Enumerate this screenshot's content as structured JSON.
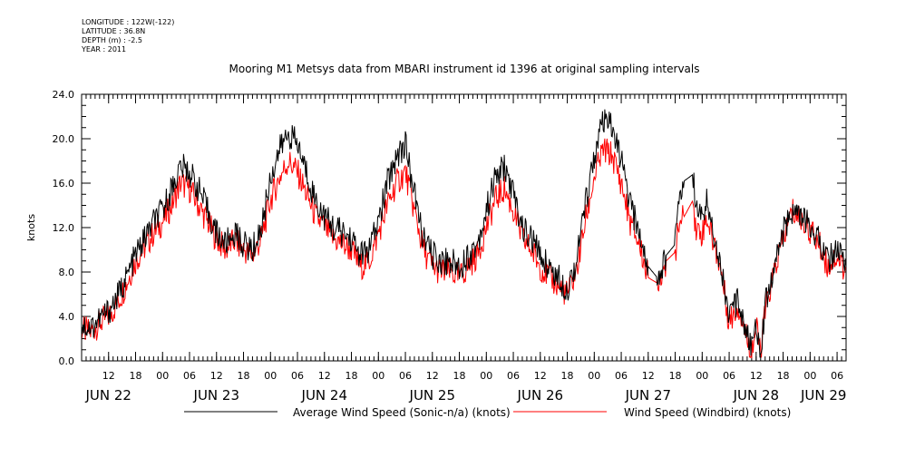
{
  "meta": {
    "longitude": "LONGITUDE : 122W(-122)",
    "latitude": "LATITUDE : 36.8N",
    "depth": "DEPTH (m) : -2.5",
    "year": "YEAR : 2011"
  },
  "chart_data": {
    "type": "line",
    "title": "Mooring M1 Metsys data from MBARI instrument id 1396 at original sampling intervals",
    "ylabel": "knots",
    "xlabel": "",
    "ylim": [
      0,
      24
    ],
    "yticks": [
      "0.0",
      "4.0",
      "8.0",
      "12.0",
      "16.0",
      "20.0",
      "24.0"
    ],
    "x_unit": "hours since JUN 22 00",
    "xlim": [
      6,
      176
    ],
    "hour_ticks": [
      {
        "h": 12,
        "label": "12"
      },
      {
        "h": 18,
        "label": "18"
      },
      {
        "h": 24,
        "label": "00"
      },
      {
        "h": 30,
        "label": "06"
      },
      {
        "h": 36,
        "label": "12"
      },
      {
        "h": 42,
        "label": "18"
      },
      {
        "h": 48,
        "label": "00"
      },
      {
        "h": 54,
        "label": "06"
      },
      {
        "h": 60,
        "label": "12"
      },
      {
        "h": 66,
        "label": "18"
      },
      {
        "h": 72,
        "label": "00"
      },
      {
        "h": 78,
        "label": "06"
      },
      {
        "h": 84,
        "label": "12"
      },
      {
        "h": 90,
        "label": "18"
      },
      {
        "h": 96,
        "label": "00"
      },
      {
        "h": 102,
        "label": "06"
      },
      {
        "h": 108,
        "label": "12"
      },
      {
        "h": 114,
        "label": "18"
      },
      {
        "h": 120,
        "label": "00"
      },
      {
        "h": 126,
        "label": "06"
      },
      {
        "h": 132,
        "label": "12"
      },
      {
        "h": 138,
        "label": "18"
      },
      {
        "h": 144,
        "label": "00"
      },
      {
        "h": 150,
        "label": "06"
      },
      {
        "h": 156,
        "label": "12"
      },
      {
        "h": 162,
        "label": "18"
      },
      {
        "h": 168,
        "label": "00"
      },
      {
        "h": 174,
        "label": "06"
      }
    ],
    "day_labels": [
      {
        "h": 12,
        "label": "JUN 22"
      },
      {
        "h": 36,
        "label": "JUN 23"
      },
      {
        "h": 60,
        "label": "JUN 24"
      },
      {
        "h": 84,
        "label": "JUN 25"
      },
      {
        "h": 108,
        "label": "JUN 26"
      },
      {
        "h": 132,
        "label": "JUN 27"
      },
      {
        "h": 156,
        "label": "JUN 28"
      },
      {
        "h": 171,
        "label": "JUN 29"
      }
    ],
    "series": [
      {
        "name": "Average Wind Speed (Sonic-n/a) (knots)",
        "color": "#000000",
        "points": [
          [
            6,
            3.2
          ],
          [
            8,
            3.0
          ],
          [
            10,
            3.8
          ],
          [
            12,
            4.5
          ],
          [
            14,
            5.8
          ],
          [
            16,
            7.5
          ],
          [
            18,
            9.5
          ],
          [
            20,
            11
          ],
          [
            22,
            12.5
          ],
          [
            24,
            13.5
          ],
          [
            26,
            15.5
          ],
          [
            28,
            17.5
          ],
          [
            30,
            17.0
          ],
          [
            32,
            15.5
          ],
          [
            34,
            13.5
          ],
          [
            36,
            11.5
          ],
          [
            38,
            10.5
          ],
          [
            40,
            11.5
          ],
          [
            42,
            10.5
          ],
          [
            44,
            10.0
          ],
          [
            46,
            12.0
          ],
          [
            48,
            16.5
          ],
          [
            50,
            19.0
          ],
          [
            52,
            20.5
          ],
          [
            54,
            19.5
          ],
          [
            56,
            17.0
          ],
          [
            58,
            14.5
          ],
          [
            60,
            13.0
          ],
          [
            62,
            12.0
          ],
          [
            64,
            11.5
          ],
          [
            66,
            11.0
          ],
          [
            68,
            9.5
          ],
          [
            70,
            10.0
          ],
          [
            72,
            12.5
          ],
          [
            74,
            16.0
          ],
          [
            76,
            18.5
          ],
          [
            78,
            19.5
          ],
          [
            80,
            15.0
          ],
          [
            82,
            11.0
          ],
          [
            84,
            9.5
          ],
          [
            86,
            9.0
          ],
          [
            88,
            9.0
          ],
          [
            90,
            8.5
          ],
          [
            92,
            9.5
          ],
          [
            94,
            10.5
          ],
          [
            96,
            13.5
          ],
          [
            98,
            16.5
          ],
          [
            100,
            17.5
          ],
          [
            102,
            15.0
          ],
          [
            104,
            12.0
          ],
          [
            106,
            11.0
          ],
          [
            108,
            9.5
          ],
          [
            110,
            8.5
          ],
          [
            112,
            7.5
          ],
          [
            114,
            6.5
          ],
          [
            116,
            9.0
          ],
          [
            118,
            14.0
          ],
          [
            120,
            18.5
          ],
          [
            122,
            21.5
          ],
          [
            124,
            21.0
          ],
          [
            126,
            18.0
          ],
          [
            128,
            14.0
          ],
          [
            130,
            11.5
          ],
          [
            132,
            8.5
          ],
          [
            134,
            7.5
          ],
          [
            136,
            9.5
          ],
          [
            138,
            10.5
          ],
          [
            139,
            15.5
          ],
          [
            140,
            16.2
          ],
          [
            142,
            16.8
          ],
          [
            142.5,
            13.5
          ],
          [
            144,
            13.0
          ],
          [
            145,
            14.5
          ],
          [
            146,
            12.5
          ],
          [
            148,
            9.0
          ],
          [
            150,
            4.0
          ],
          [
            152,
            5.5
          ],
          [
            154,
            2.5
          ],
          [
            155,
            1.0
          ],
          [
            156,
            3.5
          ],
          [
            157,
            1.0
          ],
          [
            158,
            5.0
          ],
          [
            160,
            8.5
          ],
          [
            162,
            11.5
          ],
          [
            164,
            13.5
          ],
          [
            166,
            13.0
          ],
          [
            168,
            12.0
          ],
          [
            170,
            11.0
          ],
          [
            172,
            9.0
          ],
          [
            174,
            10.0
          ],
          [
            176,
            8.5
          ]
        ]
      },
      {
        "name": "Wind Speed (Windbird) (knots)",
        "color": "#ff0000",
        "points": [
          [
            6,
            2.8
          ],
          [
            8,
            2.6
          ],
          [
            10,
            3.4
          ],
          [
            12,
            4.0
          ],
          [
            14,
            5.2
          ],
          [
            16,
            7.0
          ],
          [
            18,
            9.0
          ],
          [
            20,
            10.2
          ],
          [
            22,
            11.5
          ],
          [
            24,
            12.5
          ],
          [
            26,
            14.0
          ],
          [
            28,
            16.0
          ],
          [
            30,
            15.5
          ],
          [
            32,
            14.0
          ],
          [
            34,
            12.5
          ],
          [
            36,
            11.0
          ],
          [
            38,
            10.0
          ],
          [
            40,
            10.8
          ],
          [
            42,
            10.0
          ],
          [
            44,
            9.5
          ],
          [
            46,
            11.0
          ],
          [
            48,
            14.5
          ],
          [
            50,
            16.5
          ],
          [
            52,
            18.0
          ],
          [
            54,
            17.0
          ],
          [
            56,
            15.0
          ],
          [
            58,
            13.0
          ],
          [
            60,
            12.0
          ],
          [
            62,
            11.0
          ],
          [
            64,
            10.5
          ],
          [
            66,
            10.0
          ],
          [
            68,
            8.5
          ],
          [
            70,
            9.0
          ],
          [
            72,
            11.5
          ],
          [
            74,
            14.0
          ],
          [
            76,
            16.0
          ],
          [
            78,
            17.0
          ],
          [
            80,
            13.5
          ],
          [
            82,
            10.0
          ],
          [
            84,
            8.5
          ],
          [
            86,
            8.0
          ],
          [
            88,
            8.0
          ],
          [
            90,
            7.5
          ],
          [
            92,
            8.5
          ],
          [
            94,
            9.5
          ],
          [
            96,
            12.0
          ],
          [
            98,
            14.5
          ],
          [
            100,
            15.5
          ],
          [
            102,
            13.5
          ],
          [
            104,
            11.0
          ],
          [
            106,
            10.0
          ],
          [
            108,
            8.5
          ],
          [
            110,
            7.5
          ],
          [
            112,
            6.8
          ],
          [
            114,
            6.0
          ],
          [
            116,
            8.0
          ],
          [
            118,
            12.5
          ],
          [
            120,
            16.5
          ],
          [
            122,
            19.0
          ],
          [
            124,
            18.5
          ],
          [
            126,
            16.0
          ],
          [
            128,
            12.5
          ],
          [
            130,
            10.5
          ],
          [
            132,
            7.5
          ],
          [
            134,
            7.0
          ],
          [
            136,
            9.0
          ],
          [
            138,
            9.8
          ],
          [
            139,
            12.5
          ],
          [
            140,
            13.0
          ],
          [
            142,
            14.5
          ],
          [
            142.5,
            12.0
          ],
          [
            144,
            11.5
          ],
          [
            145,
            13.0
          ],
          [
            146,
            11.5
          ],
          [
            148,
            8.5
          ],
          [
            150,
            3.5
          ],
          [
            152,
            5.0
          ],
          [
            154,
            2.0
          ],
          [
            155,
            0.8
          ],
          [
            156,
            3.0
          ],
          [
            157,
            0.8
          ],
          [
            158,
            4.5
          ],
          [
            160,
            8.0
          ],
          [
            162,
            11.0
          ],
          [
            164,
            13.5
          ],
          [
            166,
            12.8
          ],
          [
            168,
            11.8
          ],
          [
            170,
            10.5
          ],
          [
            172,
            8.5
          ],
          [
            174,
            9.5
          ],
          [
            176,
            8.0
          ]
        ]
      }
    ]
  }
}
